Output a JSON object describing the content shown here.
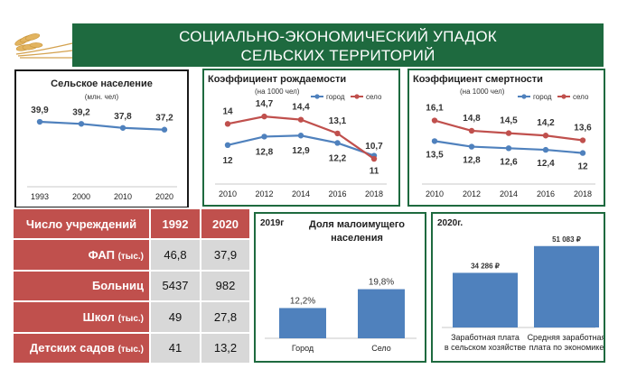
{
  "header": {
    "title_line1": "СОЦИАЛЬНО-ЭКОНОМИЧЕСКИЙ УПАДОК",
    "title_line2": "СЕЛЬСКИХ ТЕРРИТОРИЙ"
  },
  "institutions_table": {
    "header": {
      "label": "Число учреждений",
      "col1": "1992",
      "col2": "2020"
    },
    "rows": [
      {
        "label": "ФАП",
        "unit": "(тыс.)",
        "v1992": "46,8",
        "v2020": "37,9"
      },
      {
        "label": "Больниц",
        "unit": "",
        "v1992": "5437",
        "v2020": "982"
      },
      {
        "label": "Школ",
        "unit": "(тыс.)",
        "v1992": "49",
        "v2020": "27,8"
      },
      {
        "label": "Детских садов",
        "unit": "(тыс.)",
        "v1992": "41",
        "v2020": "13,2"
      }
    ]
  },
  "colors": {
    "banner": "#1e6a3f",
    "city": "#4f81bd",
    "village": "#c0504d",
    "table_header": "#c0504d",
    "table_cell": "#d8d8d8"
  },
  "chart_data": [
    {
      "type": "line",
      "title": "Сельское население",
      "subtitle": "(млн. чел)",
      "categories": [
        "1993",
        "2000",
        "2010",
        "2020"
      ],
      "series": [
        {
          "values": [
            39.9,
            39.2,
            37.8,
            37.2
          ],
          "labels": [
            "39,9",
            "39,2",
            "37,8",
            "37,2"
          ],
          "color": "#4f81bd"
        }
      ],
      "ylim": [
        20,
        48
      ],
      "legend": "none",
      "grid": false
    },
    {
      "type": "line",
      "title": "Коэффициент рождаемости",
      "subtitle": "(на 1000 чел)",
      "categories": [
        "2010",
        "2012",
        "2014",
        "2016",
        "2018"
      ],
      "series": [
        {
          "name": "город",
          "values": [
            12,
            12.8,
            12.9,
            12.2,
            11
          ],
          "labels": [
            "12",
            "12,8",
            "12,9",
            "12,2",
            "11"
          ],
          "color": "#4f81bd"
        },
        {
          "name": "село",
          "values": [
            14,
            14.7,
            14.4,
            13.1,
            10.7
          ],
          "labels": [
            "14",
            "14,7",
            "14,4",
            "13,1",
            "10,7"
          ],
          "color": "#c0504d"
        }
      ],
      "ylim": [
        9,
        16.5
      ],
      "legend": "top-right",
      "grid": false
    },
    {
      "type": "line",
      "title": "Коэффициент смертности",
      "subtitle": "(на 1000 чел)",
      "categories": [
        "2010",
        "2012",
        "2014",
        "2016",
        "2018"
      ],
      "series": [
        {
          "name": "город",
          "values": [
            13.5,
            12.8,
            12.6,
            12.4,
            12
          ],
          "labels": [
            "13,5",
            "12,8",
            "12,6",
            "12,4",
            "12"
          ],
          "color": "#4f81bd"
        },
        {
          "name": "село",
          "values": [
            16.1,
            14.8,
            14.5,
            14.2,
            13.6
          ],
          "labels": [
            "16,1",
            "14,8",
            "14,5",
            "14,2",
            "13,6"
          ],
          "color": "#c0504d"
        }
      ],
      "ylim": [
        9,
        19
      ],
      "legend": "top-right",
      "grid": false
    },
    {
      "type": "bar",
      "tag": "2019г",
      "title": "Доля малоимущего населения",
      "categories": [
        "Город",
        "Село"
      ],
      "values": [
        12.2,
        19.8
      ],
      "labels": [
        "12,2%",
        "19,8%"
      ],
      "ylim": [
        0,
        32
      ],
      "color": "#4f81bd"
    },
    {
      "type": "bar",
      "tag": "2020г.",
      "categories": [
        "Заработная плата в сельском хозяйстве",
        "Средняя заработная плата по экономике"
      ],
      "values": [
        34286,
        51083
      ],
      "labels": [
        "34 286 ₽",
        "51 083 ₽"
      ],
      "ylim": [
        0,
        60000
      ],
      "color": "#4f81bd"
    }
  ]
}
